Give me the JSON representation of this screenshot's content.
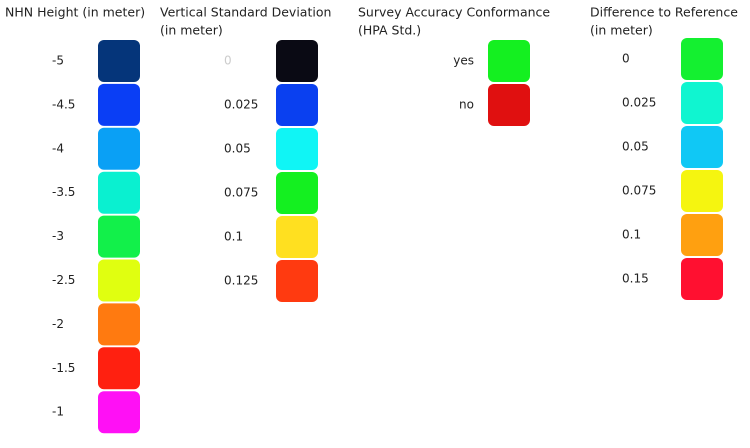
{
  "legends": [
    {
      "title_lines": [
        "NHN Height (in meter)"
      ],
      "entries": [
        {
          "label": "-5",
          "color": "#05357a"
        },
        {
          "label": "-4.5",
          "color": "#0a3ef5"
        },
        {
          "label": "-4",
          "color": "#0aa0f5"
        },
        {
          "label": "-3.5",
          "color": "#0af0d0"
        },
        {
          "label": "-3",
          "color": "#12f04a"
        },
        {
          "label": "-2.5",
          "color": "#e0ff10"
        },
        {
          "label": "-2",
          "color": "#ff7a10"
        },
        {
          "label": "-1.5",
          "color": "#ff2010"
        },
        {
          "label": "-1",
          "color": "#ff10f5"
        }
      ]
    },
    {
      "title_lines": [
        "Vertical Standard Deviation",
        "(in meter)"
      ],
      "entries": [
        {
          "label": "0",
          "color": "#0a0a14",
          "label_color": "#cccccc"
        },
        {
          "label": "0.025",
          "color": "#0a40f0"
        },
        {
          "label": "0.05",
          "color": "#10f5f5"
        },
        {
          "label": "0.075",
          "color": "#14f020"
        },
        {
          "label": "0.1",
          "color": "#ffe020"
        },
        {
          "label": "0.125",
          "color": "#ff3a10"
        }
      ]
    },
    {
      "title_lines": [
        "Survey Accuracy Conformance",
        "(HPA Std.)"
      ],
      "entries": [
        {
          "label": "yes",
          "color": "#14f020"
        },
        {
          "label": "no",
          "color": "#e01010"
        }
      ]
    },
    {
      "title_lines": [
        "Difference to Reference",
        "(in meter)"
      ],
      "entries": [
        {
          "label": "0",
          "color": "#14f030"
        },
        {
          "label": "0.025",
          "color": "#10f5d0"
        },
        {
          "label": "0.05",
          "color": "#10c8f5"
        },
        {
          "label": "0.075",
          "color": "#f5f510"
        },
        {
          "label": "0.1",
          "color": "#ffa010"
        },
        {
          "label": "0.15",
          "color": "#ff1030"
        }
      ]
    }
  ]
}
